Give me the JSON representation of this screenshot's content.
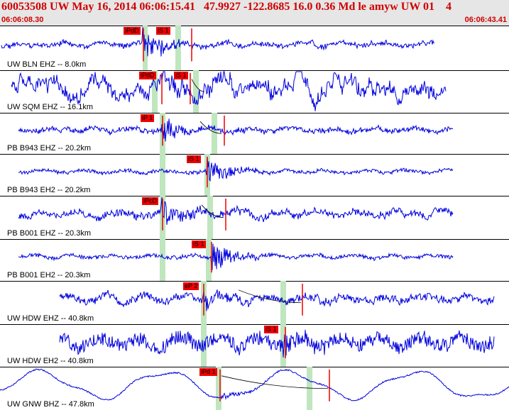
{
  "header": {
    "title": "60053508 UW May 16, 2014 06:06:15.41   47.9927 -122.8685 16.0 0.36 Md le amyw UW 01    4",
    "start_time": "06:06:08.30",
    "end_time": "06:06:43.41"
  },
  "colors": {
    "trace": "#0000dd",
    "pick": "#ee0000",
    "window": "#bfe6bf",
    "header_bg": "#e6e6e6",
    "header_text": "#d00000"
  },
  "channels": [
    {
      "label": "UW BLN EHZ -- 8.0km",
      "picks": [
        "iPdD",
        "iS 1"
      ]
    },
    {
      "label": "UW SQM EHZ -- 16.1km",
      "picks": [
        "iPdD",
        "iS 1"
      ]
    },
    {
      "label": "PB B943 EHZ -- 20.2km",
      "picks": [
        "iP 1"
      ]
    },
    {
      "label": "PB B943 EH2 -- 20.2km",
      "picks": [
        "iS 1"
      ]
    },
    {
      "label": "PB B001 EHZ -- 20.3km",
      "picks": [
        "iPcD"
      ]
    },
    {
      "label": "PB B001 EH2 -- 20.3km",
      "picks": [
        "iS 1"
      ]
    },
    {
      "label": "UW HDW EHZ -- 40.8km",
      "picks": [
        "eP 2"
      ]
    },
    {
      "label": "UW HDW EH2 -- 40.8km",
      "picks": [
        "iS 1"
      ]
    },
    {
      "label": "UW GNW BHZ -- 47.8km",
      "picks": [
        "iPd 1"
      ]
    }
  ]
}
